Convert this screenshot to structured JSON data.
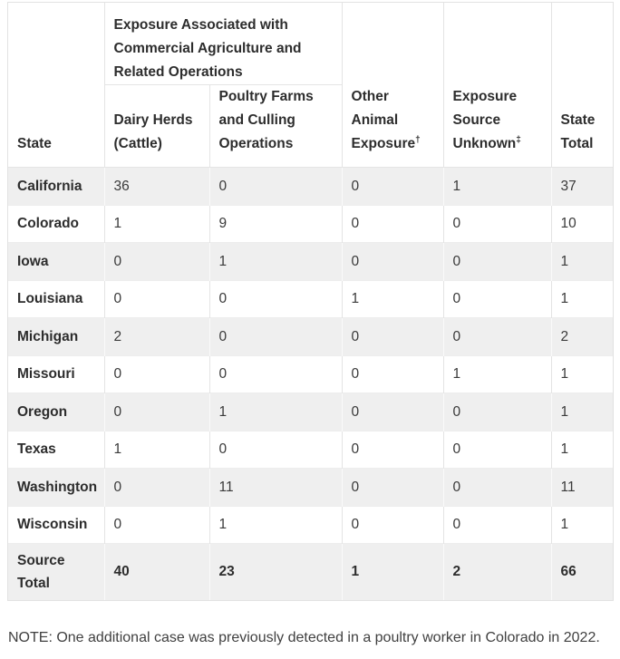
{
  "table": {
    "header": {
      "state": "State",
      "group": "Exposure Associated with Commercial Agriculture and Related Operations",
      "dairy": "Dairy Herds (Cattle)",
      "poultry": "Poultry Farms and Culling Operations",
      "other": "Other Animal Exposure",
      "other_sup": "†",
      "unknown": "Exposure Source Unknown",
      "unknown_sup": "‡",
      "total": "State Total"
    },
    "rows": [
      {
        "state": "California",
        "dairy": "36",
        "poultry": "0",
        "other": "0",
        "unknown": "1",
        "total": "37"
      },
      {
        "state": "Colorado",
        "dairy": "1",
        "poultry": "9",
        "other": "0",
        "unknown": "0",
        "total": "10"
      },
      {
        "state": "Iowa",
        "dairy": "0",
        "poultry": "1",
        "other": "0",
        "unknown": "0",
        "total": "1"
      },
      {
        "state": "Louisiana",
        "dairy": "0",
        "poultry": "0",
        "other": "1",
        "unknown": "0",
        "total": "1"
      },
      {
        "state": "Michigan",
        "dairy": "2",
        "poultry": "0",
        "other": "0",
        "unknown": "0",
        "total": "2"
      },
      {
        "state": "Missouri",
        "dairy": "0",
        "poultry": "0",
        "other": "0",
        "unknown": "1",
        "total": "1"
      },
      {
        "state": "Oregon",
        "dairy": "0",
        "poultry": "1",
        "other": "0",
        "unknown": "0",
        "total": "1"
      },
      {
        "state": "Texas",
        "dairy": "1",
        "poultry": "0",
        "other": "0",
        "unknown": "0",
        "total": "1"
      },
      {
        "state": "Washington",
        "dairy": "0",
        "poultry": "11",
        "other": "0",
        "unknown": "0",
        "total": "11"
      },
      {
        "state": "Wisconsin",
        "dairy": "0",
        "poultry": "1",
        "other": "0",
        "unknown": "0",
        "total": "1"
      }
    ],
    "total_row": {
      "state": "Source Total",
      "dairy": "40",
      "poultry": "23",
      "other": "1",
      "unknown": "2",
      "total": "66"
    }
  },
  "note": "NOTE: One additional case was previously detected in a poultry worker in Colorado in 2022."
}
